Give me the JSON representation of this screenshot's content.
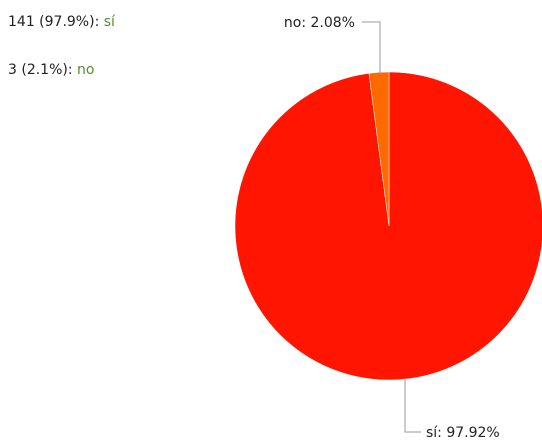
{
  "summary": [
    {
      "text": "141 (97.9%):",
      "answer": "sí"
    },
    {
      "text": "3 (2.1%):",
      "answer": "no"
    }
  ],
  "chart_data": {
    "type": "pie",
    "categories": [
      "sí",
      "no"
    ],
    "values": [
      97.92,
      2.08
    ],
    "value_labels": [
      "sí: 97.92%",
      "no: 2.08%"
    ],
    "colors": [
      "#ff1500",
      "#ff6a00"
    ]
  }
}
